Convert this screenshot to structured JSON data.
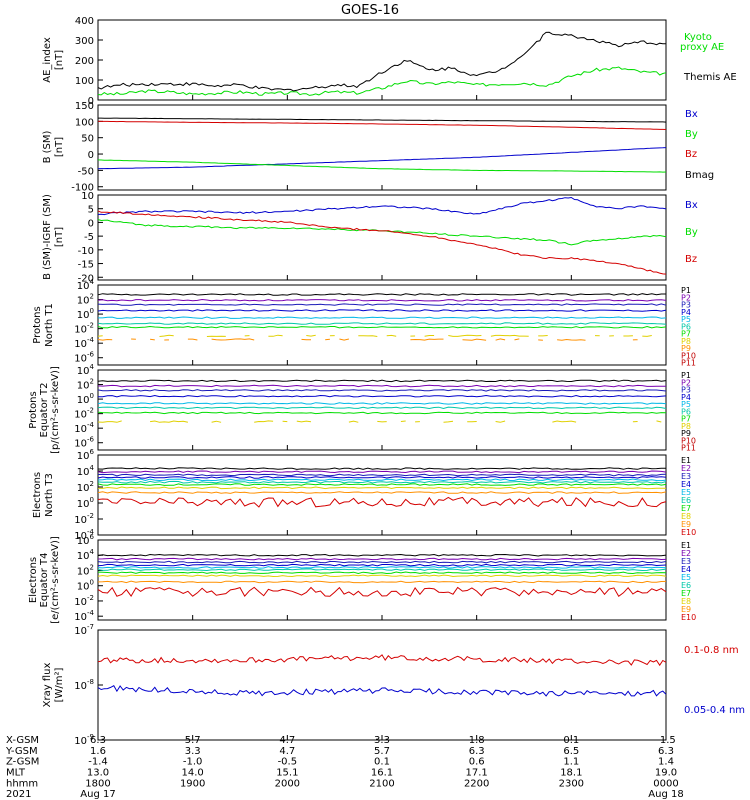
{
  "title": "GOES-16",
  "colors": {
    "black": "#000000",
    "red": "#d40000",
    "green": "#00dd00",
    "blue": "#0000cc",
    "purple": "#7a00b0",
    "navy": "#1a1ab8",
    "cyan": "#00b8e8",
    "teal": "#00c8a8",
    "yellow": "#e0d000",
    "orange": "#ff9000",
    "darkred": "#c00000"
  },
  "chart_data": [
    {
      "type": "line",
      "name": "ae-index",
      "ylabel": "AE_index [nT]",
      "ylim": [
        0,
        400
      ],
      "ticks": [
        0,
        100,
        200,
        300,
        400
      ],
      "series": [
        {
          "name": "Kyoto proxy AE",
          "color": "#00dd00",
          "x": [
            0,
            1,
            2,
            3,
            4,
            5,
            6,
            7,
            8,
            9,
            10,
            11,
            12,
            13,
            14,
            15,
            16,
            17,
            18,
            19,
            20,
            21,
            22,
            23,
            24
          ],
          "values": [
            30,
            30,
            45,
            40,
            30,
            35,
            40,
            30,
            35,
            30,
            40,
            35,
            60,
            95,
            80,
            90,
            75,
            80,
            85,
            75,
            120,
            150,
            160,
            140,
            130
          ]
        },
        {
          "name": "Themis AE",
          "color": "#000000",
          "x": [
            0,
            1,
            2,
            3,
            4,
            5,
            6,
            7,
            8,
            9,
            10,
            11,
            12,
            13,
            14,
            15,
            16,
            17,
            18,
            19,
            20,
            21,
            22,
            23,
            24
          ],
          "values": [
            60,
            75,
            80,
            80,
            80,
            70,
            75,
            55,
            50,
            60,
            75,
            70,
            140,
            200,
            150,
            160,
            120,
            150,
            230,
            340,
            320,
            300,
            270,
            290,
            280
          ]
        }
      ]
    },
    {
      "type": "line",
      "name": "b-sm",
      "ylabel": "B (SM) [nT]",
      "ylim": [
        -110,
        150
      ],
      "ticks": [
        -100,
        -50,
        0,
        50,
        100,
        150
      ],
      "series": [
        {
          "name": "Bx",
          "color": "#0000cc",
          "x": [
            0,
            4,
            8,
            12,
            16,
            20,
            24
          ],
          "values": [
            -45,
            -40,
            -30,
            -20,
            -10,
            5,
            20
          ]
        },
        {
          "name": "By",
          "color": "#00dd00",
          "x": [
            0,
            4,
            8,
            12,
            16,
            20,
            24
          ],
          "values": [
            -18,
            -25,
            -35,
            -45,
            -50,
            -52,
            -55
          ]
        },
        {
          "name": "Bz",
          "color": "#d40000",
          "x": [
            0,
            4,
            8,
            12,
            16,
            20,
            24
          ],
          "values": [
            100,
            97,
            95,
            92,
            88,
            82,
            75
          ]
        },
        {
          "name": "Bmag",
          "color": "#000000",
          "x": [
            0,
            4,
            8,
            12,
            16,
            20,
            24
          ],
          "values": [
            110,
            108,
            106,
            104,
            102,
            100,
            98
          ]
        }
      ]
    },
    {
      "type": "line",
      "name": "b-minus-igrf",
      "ylabel": "B (SM)-IGRF (SM) [nT]",
      "ylim": [
        -21,
        10
      ],
      "ticks": [
        -20,
        -15,
        -10,
        -5,
        0,
        5,
        10
      ],
      "series": [
        {
          "name": "Bx",
          "color": "#0000cc",
          "x": [
            0,
            2,
            4,
            6,
            8,
            10,
            12,
            14,
            16,
            17,
            18,
            19,
            20,
            21,
            22,
            23,
            24
          ],
          "values": [
            3,
            4,
            4,
            3.5,
            4,
            5,
            6,
            5,
            3,
            5,
            7,
            8,
            9,
            6,
            5,
            6,
            5
          ]
        },
        {
          "name": "By",
          "color": "#00dd00",
          "x": [
            0,
            2,
            4,
            6,
            8,
            10,
            12,
            14,
            16,
            17,
            18,
            19,
            20,
            21,
            22,
            23,
            24
          ],
          "values": [
            1,
            -1,
            -1.5,
            -2,
            -2,
            -2.5,
            -3,
            -4,
            -5,
            -5.5,
            -6,
            -6.5,
            -8,
            -6.5,
            -6,
            -5,
            -5
          ]
        },
        {
          "name": "Bz",
          "color": "#d40000",
          "x": [
            0,
            2,
            4,
            6,
            8,
            10,
            12,
            14,
            16,
            17,
            18,
            19,
            20,
            21,
            22,
            23,
            24
          ],
          "values": [
            4,
            3,
            2,
            1,
            0,
            -2,
            -3,
            -5,
            -8,
            -10,
            -12,
            -13,
            -13,
            -14,
            -15,
            -17,
            -19
          ]
        }
      ]
    },
    {
      "type": "line",
      "name": "protons-north",
      "ylabel": "Protons North T1",
      "scale": "log",
      "ylim": [
        -7,
        4
      ],
      "ticks": [
        "10^4",
        "10^2",
        "10^0",
        "10^-2",
        "10^-4",
        "10^-6"
      ],
      "legend": [
        "P1",
        "P2",
        "P3",
        "P4",
        "P5",
        "P6",
        "P7",
        "P8",
        "P9",
        "P10",
        "P11"
      ],
      "series": [
        {
          "name": "P1",
          "color": "#000000",
          "values": [
            2.7
          ]
        },
        {
          "name": "P2",
          "color": "#7a00b0",
          "values": [
            1.9
          ]
        },
        {
          "name": "P3",
          "color": "#1a1ab8",
          "values": [
            1.3
          ]
        },
        {
          "name": "P4",
          "color": "#0000cc",
          "values": [
            0.5
          ]
        },
        {
          "name": "P5",
          "color": "#00b8e8",
          "values": [
            -0.5
          ]
        },
        {
          "name": "P6",
          "color": "#00c8a8",
          "values": [
            -1.3
          ]
        },
        {
          "name": "P7",
          "color": "#00dd00",
          "values": [
            -1.8
          ]
        },
        {
          "name": "P8",
          "color": "#e0d000",
          "values": [
            -3.0
          ]
        },
        {
          "name": "P9",
          "color": "#ff9000",
          "values": [
            -3.5
          ]
        }
      ]
    },
    {
      "type": "line",
      "name": "protons-equator",
      "ylabel": "Protons Equator T2 [p/(cm2-s-sr-keV)]",
      "scale": "log",
      "ylim": [
        -7,
        4
      ],
      "ticks": [
        "10^4",
        "10^2",
        "10^0",
        "10^-2",
        "10^-4",
        "10^-6"
      ],
      "legend": [
        "P1",
        "P2",
        "P3",
        "P4",
        "P5",
        "P6",
        "P7",
        "P8",
        "P9",
        "P10",
        "P11"
      ],
      "series": [
        {
          "name": "P1",
          "color": "#000000",
          "values": [
            2.5
          ]
        },
        {
          "name": "P2",
          "color": "#7a00b0",
          "values": [
            1.8
          ]
        },
        {
          "name": "P3",
          "color": "#1a1ab8",
          "values": [
            1.2
          ]
        },
        {
          "name": "P4",
          "color": "#0000cc",
          "values": [
            0.4
          ]
        },
        {
          "name": "P5",
          "color": "#00b8e8",
          "values": [
            -0.6
          ]
        },
        {
          "name": "P6",
          "color": "#00c8a8",
          "values": [
            -1.2
          ]
        },
        {
          "name": "P7",
          "color": "#00dd00",
          "values": [
            -1.9
          ]
        },
        {
          "name": "P8",
          "color": "#e0d000",
          "values": [
            -3.1
          ]
        }
      ]
    },
    {
      "type": "line",
      "name": "electrons-north",
      "ylabel": "Electrons North T3",
      "scale": "log",
      "ylim": [
        -4,
        6
      ],
      "ticks": [
        "10^6",
        "10^4",
        "10^2",
        "10^0",
        "10^-2",
        "10^-4"
      ],
      "legend": [
        "E1",
        "E2",
        "E3",
        "E4",
        "E5",
        "E6",
        "E7",
        "E8",
        "E9",
        "E10"
      ],
      "series": [
        {
          "name": "E1",
          "color": "#000000",
          "values": [
            4.3
          ]
        },
        {
          "name": "E2",
          "color": "#7a00b0",
          "values": [
            3.9
          ]
        },
        {
          "name": "E3",
          "color": "#1a1ab8",
          "values": [
            3.5
          ]
        },
        {
          "name": "E4",
          "color": "#0000cc",
          "values": [
            3.2
          ]
        },
        {
          "name": "E5",
          "color": "#00b8e8",
          "values": [
            2.9
          ]
        },
        {
          "name": "E6",
          "color": "#00c8a8",
          "values": [
            2.6
          ]
        },
        {
          "name": "E7",
          "color": "#00dd00",
          "values": [
            2.3
          ]
        },
        {
          "name": "E8",
          "color": "#e0d000",
          "values": [
            1.9
          ]
        },
        {
          "name": "E9",
          "color": "#ff9000",
          "values": [
            1.3
          ]
        },
        {
          "name": "E10",
          "color": "#d40000",
          "values": [
            0.1
          ]
        }
      ]
    },
    {
      "type": "line",
      "name": "electrons-equator",
      "ylabel": "Electrons Equator T4 [e/(cm2-s-sr-keV)]",
      "scale": "log",
      "ylim": [
        -4.5,
        6
      ],
      "ticks": [
        "10^6",
        "10^4",
        "10^2",
        "10^0",
        "10^-2",
        "10^-4"
      ],
      "legend": [
        "E1",
        "E2",
        "E3",
        "E4",
        "E5",
        "E6",
        "E7",
        "E8",
        "E9",
        "E10"
      ],
      "series": [
        {
          "name": "E1",
          "color": "#000000",
          "values": [
            4.0
          ]
        },
        {
          "name": "E2",
          "color": "#7a00b0",
          "values": [
            3.5
          ]
        },
        {
          "name": "E3",
          "color": "#1a1ab8",
          "values": [
            3.1
          ]
        },
        {
          "name": "E4",
          "color": "#0000cc",
          "values": [
            2.7
          ]
        },
        {
          "name": "E5",
          "color": "#00b8e8",
          "values": [
            2.4
          ]
        },
        {
          "name": "E6",
          "color": "#00c8a8",
          "values": [
            2.1
          ]
        },
        {
          "name": "E7",
          "color": "#00dd00",
          "values": [
            1.7
          ]
        },
        {
          "name": "E8",
          "color": "#e0d000",
          "values": [
            1.3
          ]
        },
        {
          "name": "E9",
          "color": "#ff9000",
          "values": [
            0.5
          ]
        },
        {
          "name": "E10",
          "color": "#d40000",
          "values": [
            -0.8
          ]
        }
      ]
    },
    {
      "type": "line",
      "name": "xray-flux",
      "ylabel": "Xray flux [W/m2]",
      "scale": "log",
      "ylim": [
        -9,
        -7
      ],
      "ticks": [
        "10^-7",
        "10^-8",
        "10^-9"
      ],
      "series": [
        {
          "name": "0.1-0.8 nm",
          "color": "#d40000",
          "x": [
            0,
            6,
            12,
            18,
            24
          ],
          "values": [
            -7.55,
            -7.55,
            -7.5,
            -7.55,
            -7.6
          ]
        },
        {
          "name": "0.05-0.4 nm",
          "color": "#0000cc",
          "x": [
            0,
            6,
            12,
            18,
            24
          ],
          "values": [
            -8.05,
            -8.15,
            -8.1,
            -8.15,
            -8.15
          ]
        }
      ]
    }
  ],
  "legend_labels": {
    "ae": [
      "Kyoto",
      "proxy AE",
      "Themis AE"
    ],
    "b": [
      "Bx",
      "By",
      "Bz",
      "Bmag"
    ],
    "bi": [
      "Bx",
      "By",
      "Bz"
    ],
    "xray": [
      "0.1-0.8 nm",
      "0.05-0.4 nm"
    ]
  },
  "x_axis": {
    "row_labels": [
      "X-GSM",
      "Y-GSM",
      "Z-GSM",
      "MLT",
      "hhmm",
      "2021"
    ],
    "columns": [
      [
        "6.3",
        "1.6",
        "-1.4",
        "13.0",
        "1800",
        "Aug 17"
      ],
      [
        "5.7",
        "3.3",
        "-1.0",
        "14.0",
        "1900",
        ""
      ],
      [
        "4.7",
        "4.7",
        "-0.5",
        "15.1",
        "2000",
        ""
      ],
      [
        "3.3",
        "5.7",
        "0.1",
        "16.1",
        "2100",
        ""
      ],
      [
        "1.8",
        "6.3",
        "0.6",
        "17.1",
        "2200",
        ""
      ],
      [
        "0.1",
        "6.5",
        "1.1",
        "18.1",
        "2300",
        ""
      ],
      [
        "-1.5",
        "6.3",
        "1.4",
        "19.0",
        "0000",
        "Aug 18"
      ]
    ]
  }
}
